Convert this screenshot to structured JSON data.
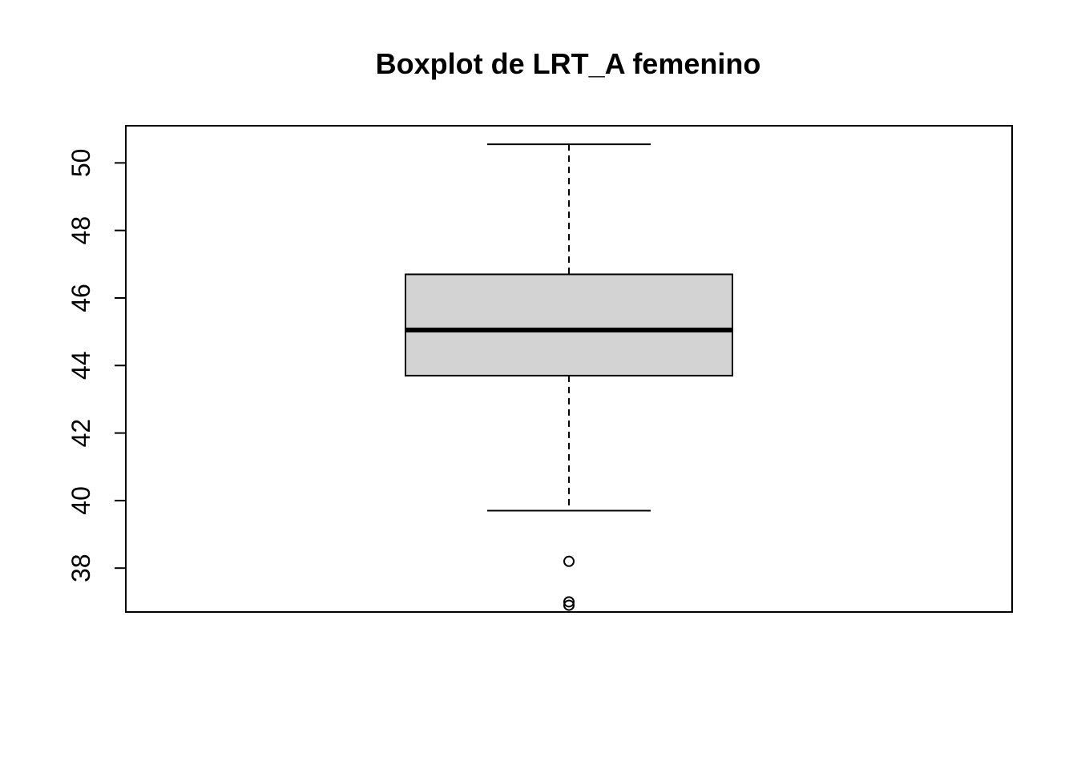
{
  "chart_data": {
    "type": "boxplot",
    "title": "Boxplot de LRT_A femenino",
    "xlabel": "",
    "ylabel": "",
    "ylim": [
      36.7,
      51.1
    ],
    "yticks": [
      38,
      40,
      42,
      44,
      46,
      48,
      50
    ],
    "ytick_labels": [
      "38",
      "40",
      "42",
      "44",
      "46",
      "48",
      "50"
    ],
    "box": {
      "whisker_low": 39.7,
      "q1": 43.7,
      "median": 45.05,
      "q3": 46.7,
      "whisker_high": 50.55
    },
    "outliers": [
      38.2,
      37.0,
      36.9
    ],
    "colors": {
      "box_fill": "#d3d3d3",
      "line": "#000000",
      "background": "#ffffff"
    },
    "grid": false
  }
}
